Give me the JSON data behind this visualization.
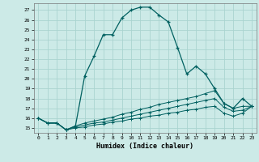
{
  "xlabel": "Humidex (Indice chaleur)",
  "xlim": [
    -0.5,
    23.5
  ],
  "ylim": [
    14.5,
    27.7
  ],
  "yticks": [
    15,
    16,
    17,
    18,
    19,
    20,
    21,
    22,
    23,
    24,
    25,
    26,
    27
  ],
  "xticks": [
    0,
    1,
    2,
    3,
    4,
    5,
    6,
    7,
    8,
    9,
    10,
    11,
    12,
    13,
    14,
    15,
    16,
    17,
    18,
    19,
    20,
    21,
    22,
    23
  ],
  "bg_color": "#cceae7",
  "grid_color": "#aad4d0",
  "line_color": "#006060",
  "curves": {
    "main": {
      "x": [
        0,
        1,
        2,
        3,
        4,
        5,
        6,
        7,
        8,
        9,
        10,
        11,
        12,
        13,
        14,
        15,
        16,
        17,
        18,
        19,
        20,
        21,
        22,
        23
      ],
      "y": [
        16.0,
        15.5,
        15.5,
        14.8,
        15.2,
        20.3,
        22.3,
        24.5,
        24.5,
        26.2,
        27.0,
        27.3,
        27.3,
        26.5,
        25.8,
        23.2,
        20.5,
        21.3,
        20.5,
        19.0,
        17.5,
        17.0,
        18.0,
        17.2
      ]
    },
    "lower1": {
      "x": [
        0,
        1,
        2,
        3,
        4,
        5,
        6,
        7,
        8,
        9,
        10,
        11,
        12,
        13,
        14,
        15,
        16,
        17,
        18,
        19,
        20,
        21,
        22,
        23
      ],
      "y": [
        16.0,
        15.5,
        15.5,
        14.8,
        15.2,
        15.5,
        15.7,
        15.9,
        16.1,
        16.4,
        16.6,
        16.9,
        17.1,
        17.4,
        17.6,
        17.8,
        18.0,
        18.2,
        18.5,
        18.8,
        17.5,
        17.0,
        17.2,
        17.2
      ]
    },
    "lower2": {
      "x": [
        0,
        1,
        2,
        3,
        4,
        5,
        6,
        7,
        8,
        9,
        10,
        11,
        12,
        13,
        14,
        15,
        16,
        17,
        18,
        19,
        20,
        21,
        22,
        23
      ],
      "y": [
        16.0,
        15.5,
        15.5,
        14.8,
        15.1,
        15.3,
        15.5,
        15.6,
        15.8,
        16.0,
        16.2,
        16.4,
        16.6,
        16.8,
        17.0,
        17.2,
        17.4,
        17.6,
        17.8,
        18.0,
        17.1,
        16.7,
        16.8,
        17.2
      ]
    },
    "lower3": {
      "x": [
        0,
        1,
        2,
        3,
        4,
        5,
        6,
        7,
        8,
        9,
        10,
        11,
        12,
        13,
        14,
        15,
        16,
        17,
        18,
        19,
        20,
        21,
        22,
        23
      ],
      "y": [
        16.0,
        15.5,
        15.5,
        14.8,
        15.0,
        15.1,
        15.3,
        15.4,
        15.6,
        15.7,
        15.9,
        16.0,
        16.2,
        16.3,
        16.5,
        16.6,
        16.8,
        16.9,
        17.1,
        17.2,
        16.5,
        16.2,
        16.5,
        17.2
      ]
    }
  }
}
